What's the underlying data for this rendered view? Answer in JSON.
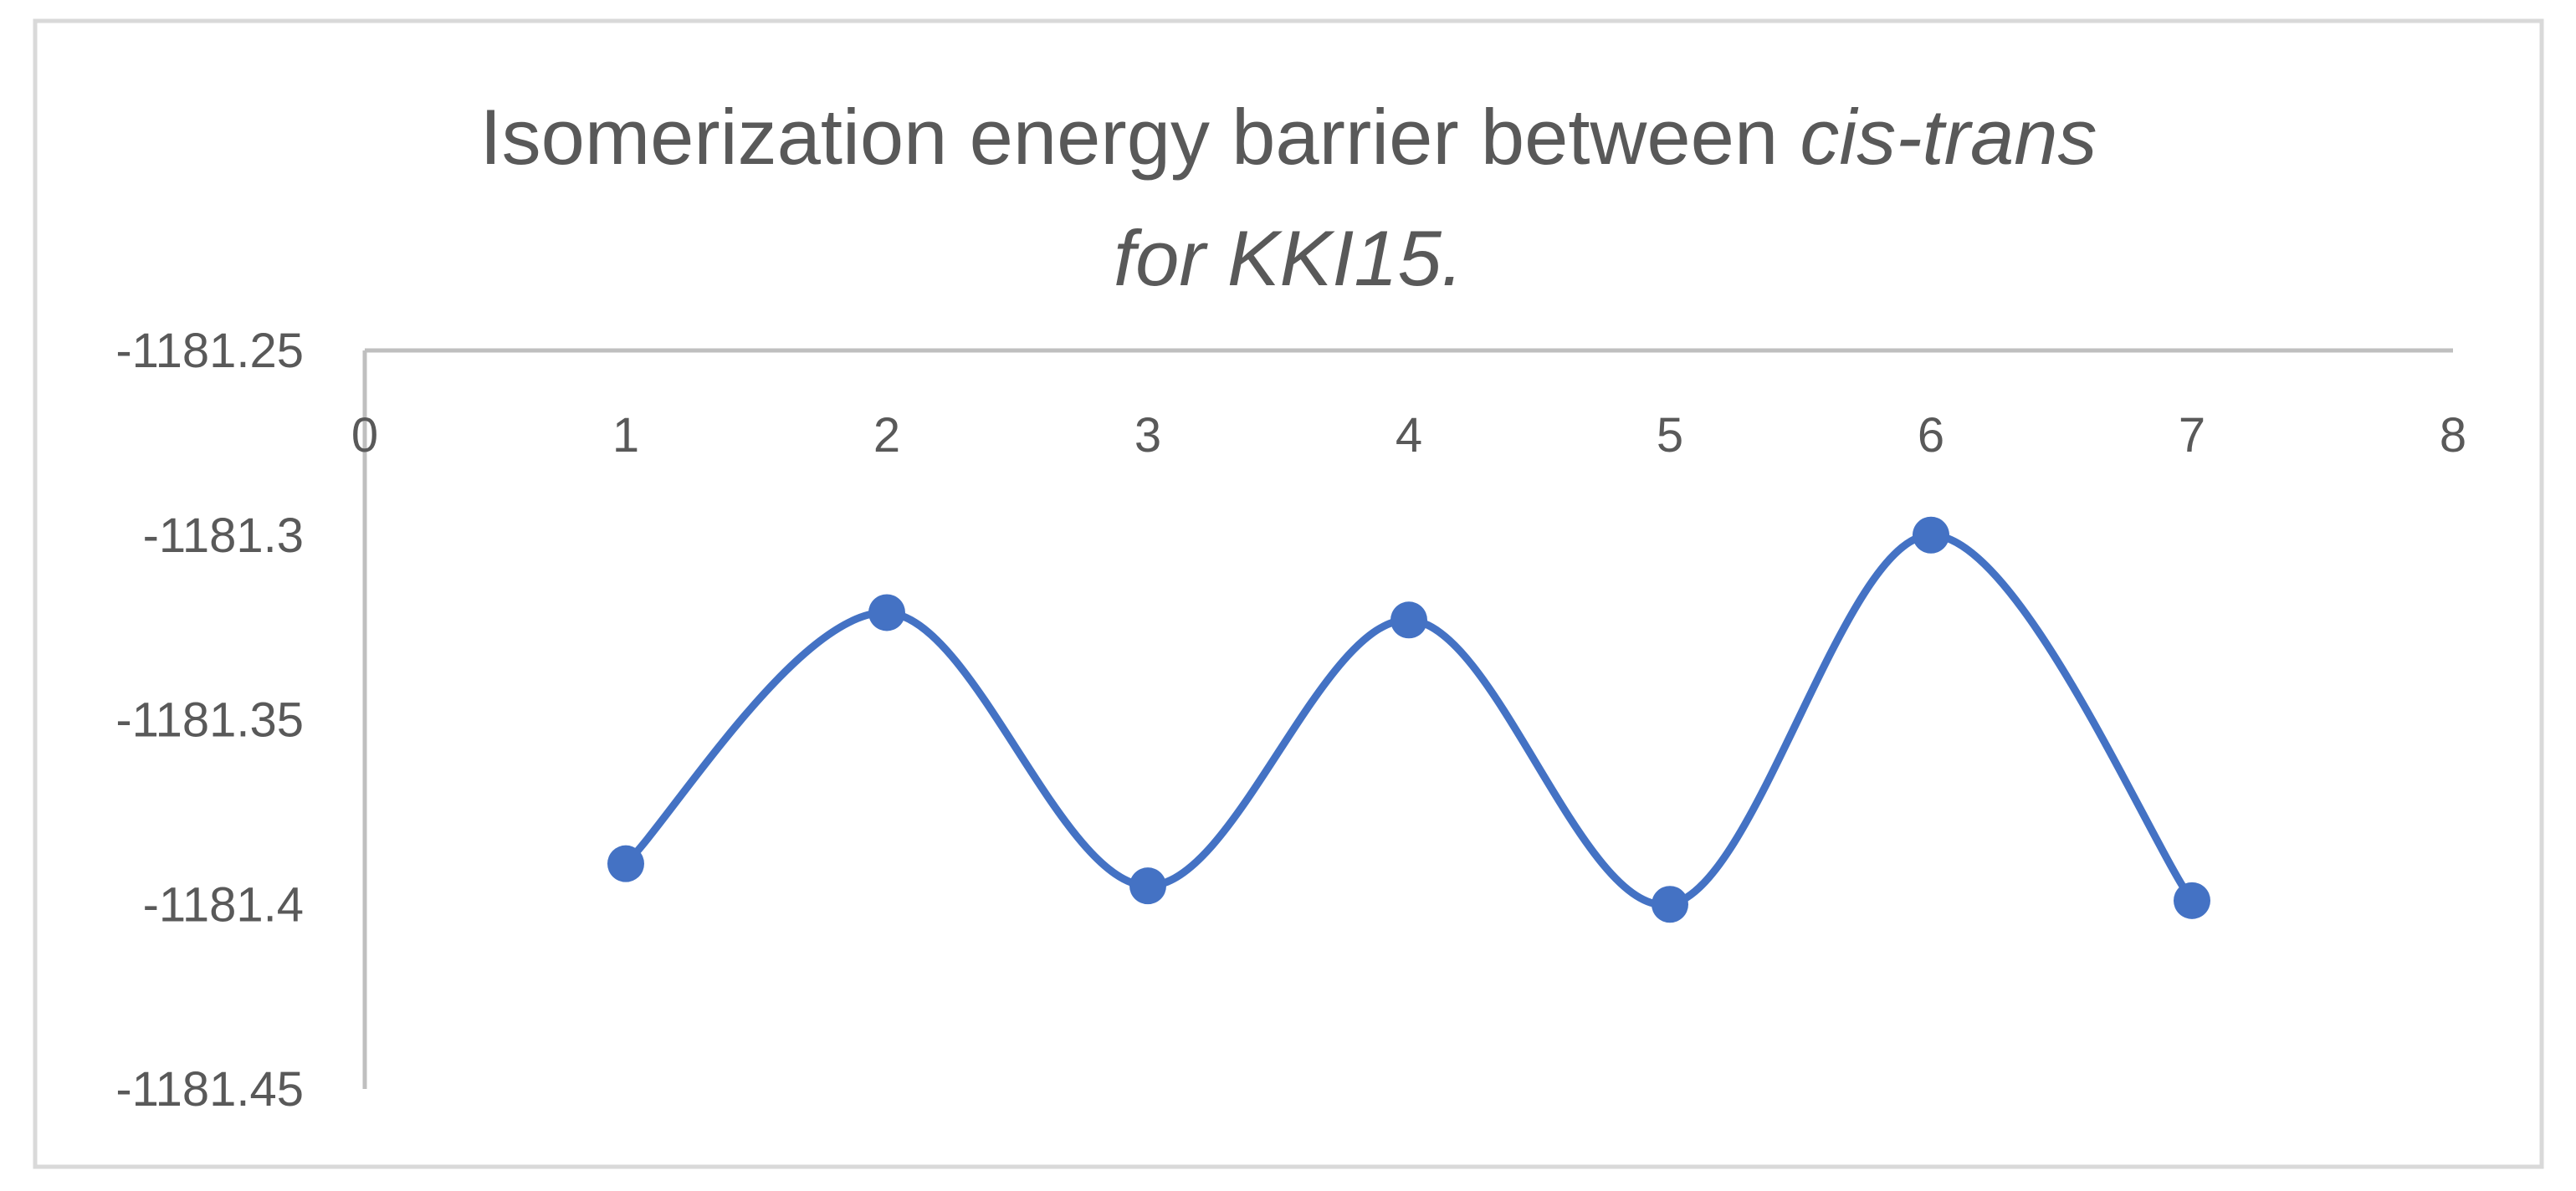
{
  "chart_data": {
    "type": "line",
    "title": {
      "line1_prefix": "Isomerization energy barrier between ",
      "line1_italic": "cis-trans",
      "line2_italic": "for KKI15."
    },
    "xlabel": "",
    "ylabel": "",
    "x_ticks": [
      "0",
      "1",
      "2",
      "3",
      "4",
      "5",
      "6",
      "7",
      "8"
    ],
    "y_ticks": [
      "-1181.25",
      "-1181.3",
      "-1181.35",
      "-1181.4",
      "-1181.45"
    ],
    "xlim": [
      0,
      8
    ],
    "ylim": [
      -1181.45,
      -1181.25
    ],
    "x_axis_position": "top",
    "smoothed": true,
    "markers": true,
    "grid": false,
    "legend": "none",
    "series": [
      {
        "x": [
          1,
          2,
          3,
          4,
          5,
          6,
          7
        ],
        "y": [
          -1181.389,
          -1181.321,
          -1181.395,
          -1181.323,
          -1181.4,
          -1181.3,
          -1181.399
        ],
        "color": "#4472c4"
      }
    ]
  }
}
